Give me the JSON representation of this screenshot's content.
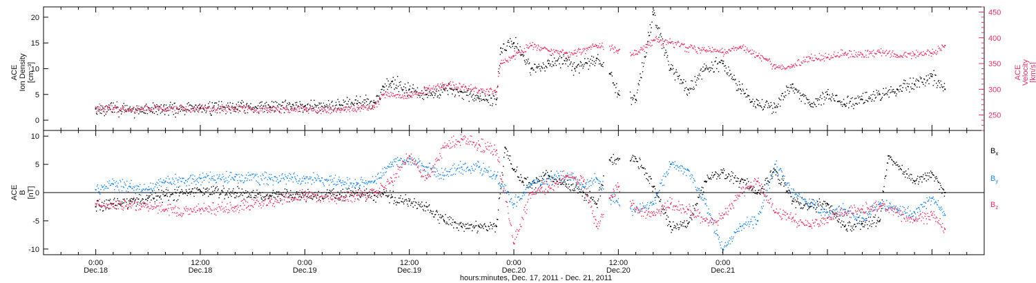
{
  "chart_data": [
    {
      "type": "scatter",
      "panel": "top",
      "ylabel_lines": [
        "ACE",
        "Ion Density",
        "[cm⁻³]"
      ],
      "ylim": [
        -2,
        22
      ],
      "yticks": [
        0,
        5,
        10,
        15,
        20
      ],
      "y2label_lines": [
        "ACE",
        "Velocity",
        "[km/s]"
      ],
      "y2lim": [
        220,
        460
      ],
      "y2ticks": [
        250,
        300,
        350,
        400,
        450
      ],
      "grid": false,
      "series": [
        {
          "color": "#000000",
          "axis": "left",
          "points": [
            [
              0,
              2.2
            ],
            [
              4,
              2.0
            ],
            [
              8,
              2.1
            ],
            [
              12,
              2.4
            ],
            [
              16,
              2.5
            ],
            [
              20,
              2.6
            ],
            [
              24,
              2.7
            ],
            [
              28,
              3.0
            ],
            [
              30,
              3.2
            ],
            [
              32,
              3.4
            ],
            [
              33,
              6.5
            ],
            [
              34,
              7.5
            ],
            [
              36,
              6.0
            ],
            [
              38,
              5.0
            ],
            [
              40,
              6.0
            ],
            [
              42,
              5.5
            ],
            [
              44,
              4.2
            ],
            [
              46,
              4.0
            ],
            [
              46.5,
              14.0
            ],
            [
              48,
              15.0
            ],
            [
              50,
              10.0
            ],
            [
              52,
              11.0
            ],
            [
              54,
              12.0
            ],
            [
              55,
              10.0
            ],
            [
              57.5,
              12.0
            ],
            [
              59,
              9.0
            ],
            [
              60,
              5.0
            ],
            [
              62,
              4.0
            ],
            [
              64,
              20.5
            ],
            [
              66,
              10.0
            ],
            [
              68,
              6.0
            ],
            [
              70,
              10.0
            ],
            [
              72,
              11.0
            ],
            [
              74,
              6.0
            ],
            [
              76,
              3.0
            ],
            [
              78,
              2.5
            ],
            [
              80,
              7.0
            ],
            [
              82,
              3.0
            ],
            [
              84,
              5.0
            ],
            [
              86,
              3.0
            ],
            [
              88,
              4.0
            ],
            [
              90,
              5.0
            ],
            [
              92,
              6.0
            ],
            [
              94,
              7.0
            ],
            [
              96,
              8.5
            ],
            [
              97.5,
              6.0
            ]
          ]
        },
        {
          "color": "#e8305f",
          "axis": "right",
          "points": [
            [
              0,
              265
            ],
            [
              4,
              260
            ],
            [
              8,
              262
            ],
            [
              12,
              262
            ],
            [
              16,
              262
            ],
            [
              20,
              261
            ],
            [
              24,
              260
            ],
            [
              28,
              260
            ],
            [
              32,
              265
            ],
            [
              33,
              290
            ],
            [
              36,
              288
            ],
            [
              38,
              298
            ],
            [
              40,
              308
            ],
            [
              42,
              305
            ],
            [
              44,
              298
            ],
            [
              46,
              295
            ],
            [
              46.5,
              350
            ],
            [
              48,
              365
            ],
            [
              50,
              385
            ],
            [
              52,
              375
            ],
            [
              54,
              370
            ],
            [
              55,
              370
            ],
            [
              57.5,
              385
            ],
            [
              60,
              375
            ],
            [
              62,
              368
            ],
            [
              64,
              395
            ],
            [
              66,
              390
            ],
            [
              68,
              380
            ],
            [
              70,
              375
            ],
            [
              72,
              372
            ],
            [
              74,
              383
            ],
            [
              76,
              365
            ],
            [
              77,
              357
            ],
            [
              78,
              340
            ],
            [
              80,
              345
            ],
            [
              82,
              360
            ],
            [
              84,
              362
            ],
            [
              86,
              370
            ],
            [
              88,
              368
            ],
            [
              90,
              372
            ],
            [
              92,
              366
            ],
            [
              94,
              368
            ],
            [
              96,
              370
            ],
            [
              97.5,
              385
            ]
          ]
        }
      ]
    },
    {
      "type": "scatter",
      "panel": "bottom",
      "ylabel_lines": [
        "ACE",
        "B",
        "[nT]"
      ],
      "ylim": [
        -11,
        11
      ],
      "yticks": [
        -10,
        -5,
        0,
        5,
        10
      ],
      "grid": false,
      "zero_line": true,
      "legend": [
        "Bx",
        "By",
        "Bz"
      ],
      "legend_placement": "right",
      "series": [
        {
          "name": "Bx",
          "color": "#000000",
          "points": [
            [
              0,
              -2.5
            ],
            [
              2,
              -2.0
            ],
            [
              4,
              -1.5
            ],
            [
              6,
              -1.0
            ],
            [
              8,
              -0.5
            ],
            [
              12,
              0.3
            ],
            [
              16,
              0.0
            ],
            [
              20,
              -0.5
            ],
            [
              24,
              -0.5
            ],
            [
              28,
              -0.3
            ],
            [
              30,
              0.0
            ],
            [
              32,
              -0.5
            ],
            [
              33,
              -0.3
            ],
            [
              34,
              -0.8
            ],
            [
              36,
              -1.5
            ],
            [
              38,
              -2.5
            ],
            [
              40,
              -5.0
            ],
            [
              42,
              -6.0
            ],
            [
              44,
              -6.0
            ],
            [
              46,
              -6.0
            ],
            [
              47,
              8.0
            ],
            [
              48,
              4.0
            ],
            [
              49,
              2.0
            ],
            [
              50,
              1.5
            ],
            [
              52,
              3.0
            ],
            [
              54,
              1.5
            ],
            [
              56,
              0.0
            ],
            [
              57.5,
              -2.0
            ],
            [
              59,
              5.8
            ],
            [
              62,
              6.0
            ],
            [
              64,
              1.0
            ],
            [
              66,
              -6.0
            ],
            [
              68,
              -5.5
            ],
            [
              70,
              2.0
            ],
            [
              72,
              3.5
            ],
            [
              74,
              2.0
            ],
            [
              76,
              0.0
            ],
            [
              78,
              4.0
            ],
            [
              80,
              -1.5
            ],
            [
              82,
              -2.5
            ],
            [
              84,
              -2.0
            ],
            [
              86,
              -6.0
            ],
            [
              88,
              -5.5
            ],
            [
              90,
              -5.0
            ],
            [
              91,
              6.5
            ],
            [
              94,
              2.0
            ],
            [
              96,
              3.5
            ],
            [
              97.5,
              0.0
            ]
          ]
        },
        {
          "name": "By",
          "color": "#1a86e8",
          "points": [
            [
              0,
              0.5
            ],
            [
              2,
              1.5
            ],
            [
              4,
              1.0
            ],
            [
              6,
              0.5
            ],
            [
              8,
              2.0
            ],
            [
              12,
              2.5
            ],
            [
              16,
              2.8
            ],
            [
              20,
              2.5
            ],
            [
              24,
              2.5
            ],
            [
              28,
              2.0
            ],
            [
              30,
              1.5
            ],
            [
              32,
              2.0
            ],
            [
              34,
              5.0
            ],
            [
              36,
              6.0
            ],
            [
              38,
              4.5
            ],
            [
              40,
              3.0
            ],
            [
              42,
              4.5
            ],
            [
              44,
              4.5
            ],
            [
              46,
              3.0
            ],
            [
              48,
              -2.0
            ],
            [
              50,
              1.5
            ],
            [
              52,
              2.5
            ],
            [
              54,
              3.0
            ],
            [
              56,
              1.0
            ],
            [
              57.5,
              2.5
            ],
            [
              59,
              -1.0
            ],
            [
              62,
              -3.0
            ],
            [
              64,
              -2.0
            ],
            [
              66,
              5.0
            ],
            [
              68,
              4.0
            ],
            [
              70,
              -2.0
            ],
            [
              72,
              -10.0
            ],
            [
              74,
              -6.0
            ],
            [
              76,
              -5.0
            ],
            [
              78,
              5.0
            ],
            [
              80,
              0.0
            ],
            [
              82,
              -2.0
            ],
            [
              84,
              -3.5
            ],
            [
              86,
              -3.0
            ],
            [
              88,
              -4.5
            ],
            [
              90,
              -2.0
            ],
            [
              92,
              -3.0
            ],
            [
              94,
              -3.5
            ],
            [
              96,
              -1.0
            ],
            [
              97.5,
              -4.0
            ]
          ]
        },
        {
          "name": "Bz",
          "color": "#e8305f",
          "points": [
            [
              0,
              -2.0
            ],
            [
              2,
              -2.5
            ],
            [
              4,
              -2.0
            ],
            [
              6,
              -2.5
            ],
            [
              8,
              -3.0
            ],
            [
              12,
              -3.0
            ],
            [
              16,
              -2.5
            ],
            [
              20,
              -1.5
            ],
            [
              24,
              -0.5
            ],
            [
              28,
              -1.0
            ],
            [
              30,
              -0.5
            ],
            [
              32,
              0.0
            ],
            [
              34,
              2.0
            ],
            [
              36,
              6.5
            ],
            [
              38,
              2.5
            ],
            [
              40,
              8.0
            ],
            [
              42,
              9.5
            ],
            [
              44,
              8.5
            ],
            [
              46,
              7.5
            ],
            [
              48,
              -9.0
            ],
            [
              50,
              0.0
            ],
            [
              52,
              1.0
            ],
            [
              54,
              3.0
            ],
            [
              56,
              2.0
            ],
            [
              57.5,
              -6.0
            ],
            [
              59,
              -1.0
            ],
            [
              60,
              1.0
            ],
            [
              62,
              -3.0
            ],
            [
              64,
              -4.0
            ],
            [
              66,
              -2.0
            ],
            [
              68,
              -3.0
            ],
            [
              70,
              -5.0
            ],
            [
              72,
              -4.5
            ],
            [
              74,
              0.0
            ],
            [
              76,
              2.0
            ],
            [
              78,
              -3.5
            ],
            [
              80,
              -4.5
            ],
            [
              82,
              -6.0
            ],
            [
              84,
              -4.5
            ],
            [
              86,
              -3.5
            ],
            [
              88,
              -3.0
            ],
            [
              90,
              -2.5
            ],
            [
              92,
              -3.5
            ],
            [
              94,
              -5.0
            ],
            [
              96,
              -4.0
            ],
            [
              97.5,
              -6.5
            ]
          ]
        }
      ]
    }
  ],
  "x_axis": {
    "xlim": [
      -6,
      102
    ],
    "ticks": [
      {
        "x": 0,
        "time": "0:00",
        "date": "Dec.18"
      },
      {
        "x": 12,
        "time": "12:00",
        "date": "Dec.18"
      },
      {
        "x": 24,
        "time": "0:00",
        "date": "Dec.19"
      },
      {
        "x": 36,
        "time": "12:00",
        "date": "Dec.19"
      },
      {
        "x": 48,
        "time": "0:00",
        "date": "Dec.20"
      },
      {
        "x": 60,
        "time": "12:00",
        "date": "Dec.20"
      },
      {
        "x": 72,
        "time": "0:00",
        "date": "Dec.21"
      }
    ],
    "xlabel": "hours:minutes, Dec. 17, 2011 - Dec. 21, 2011"
  }
}
